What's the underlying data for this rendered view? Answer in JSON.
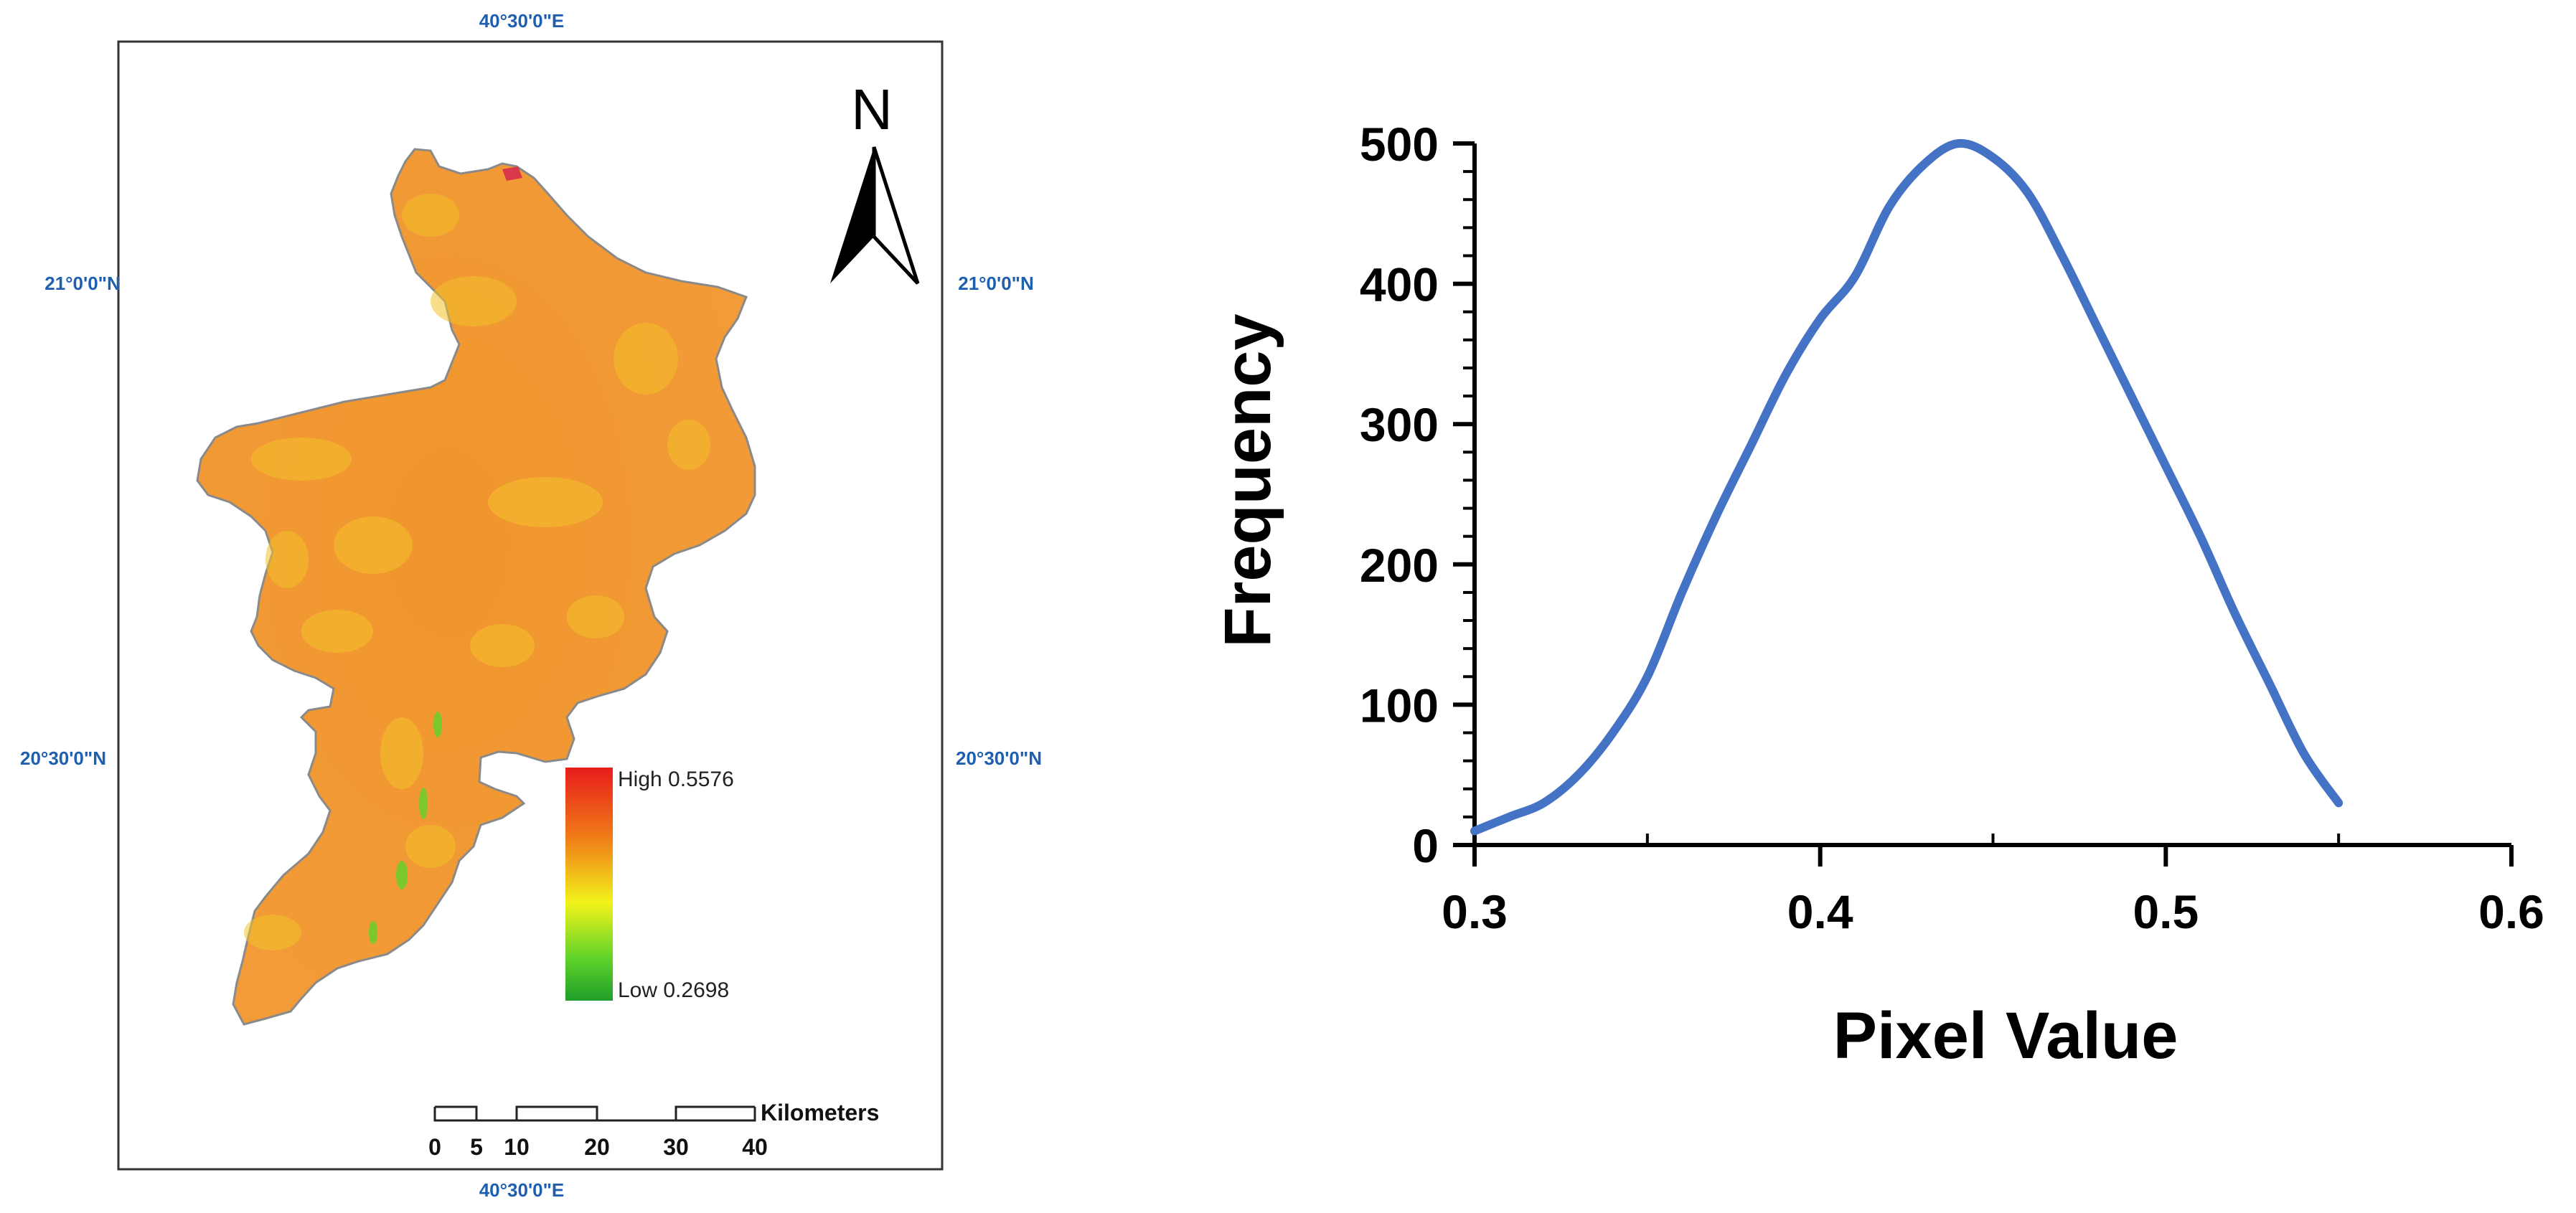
{
  "map": {
    "coords": {
      "top_lon": "40°30'0\"E",
      "bottom_lon": "40°30'0\"E",
      "left_lat_upper": "21°0'0\"N",
      "left_lat_lower": "20°30'0\"N",
      "right_lat_upper": "21°0'0\"N",
      "right_lat_lower": "20°30'0\"N"
    },
    "north_label": "N",
    "legend": {
      "high_label": "High 0.5576",
      "low_label": "Low 0.2698",
      "colors": [
        "#e81c1c",
        "#f07c18",
        "#f2f21a",
        "#5fd32a",
        "#1f9e2a"
      ]
    },
    "scale_bar": {
      "unit": "Kilometers",
      "ticks": [
        "0",
        "5",
        "10",
        "20",
        "30",
        "40"
      ]
    },
    "fill_colors": {
      "base": "#f09022",
      "light": "#f2c12a",
      "border": "#8a8a8a"
    }
  },
  "chart_data": {
    "type": "line",
    "title": "",
    "xlabel": "Pixel Value",
    "ylabel": "Frequency",
    "xlim": [
      0.3,
      0.6
    ],
    "ylim": [
      0,
      500
    ],
    "x_ticks": [
      "0.3",
      "0.4",
      "0.5",
      "0.6"
    ],
    "y_ticks": [
      "0",
      "100",
      "200",
      "300",
      "400",
      "500"
    ],
    "line_color": "#4472c4",
    "x": [
      0.3,
      0.31,
      0.32,
      0.33,
      0.34,
      0.35,
      0.36,
      0.37,
      0.38,
      0.39,
      0.4,
      0.41,
      0.42,
      0.43,
      0.44,
      0.45,
      0.46,
      0.47,
      0.48,
      0.49,
      0.5,
      0.51,
      0.52,
      0.53,
      0.54,
      0.55
    ],
    "y": [
      10,
      20,
      30,
      50,
      80,
      120,
      180,
      235,
      285,
      335,
      375,
      405,
      455,
      485,
      500,
      490,
      465,
      420,
      370,
      320,
      270,
      220,
      165,
      115,
      65,
      30
    ]
  }
}
